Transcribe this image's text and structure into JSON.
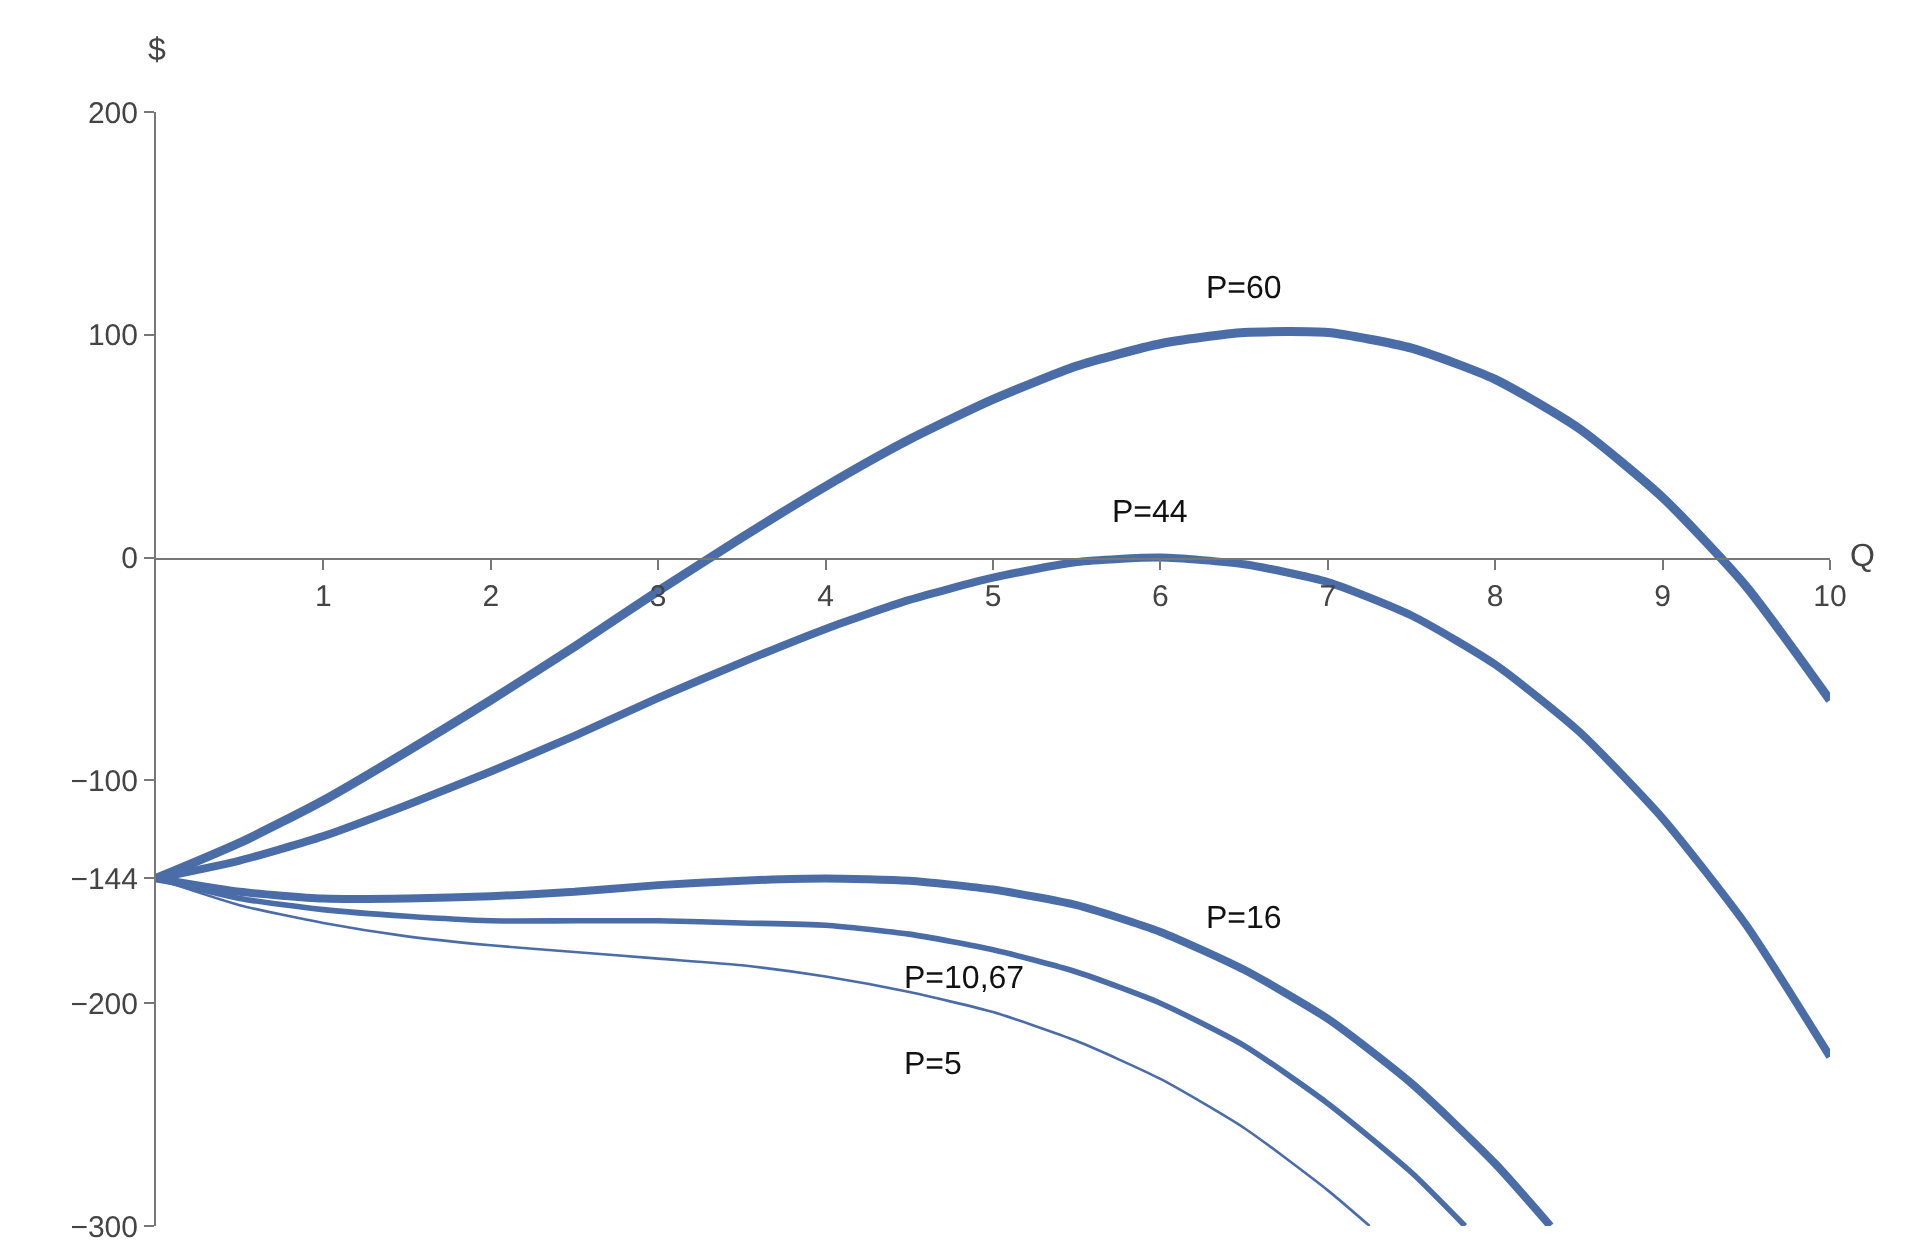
{
  "chart_data": {
    "type": "line",
    "xlabel": "Q",
    "ylabel": "$",
    "xlim": [
      0,
      10
    ],
    "ylim": [
      -300,
      200
    ],
    "xticks": [
      1,
      2,
      3,
      4,
      5,
      6,
      7,
      8,
      9,
      10
    ],
    "yticks": [
      200,
      100,
      0,
      {
        "value": -100,
        "label": "−100"
      },
      {
        "value": -144,
        "label": "−144"
      },
      {
        "value": -200,
        "label": "−200"
      },
      {
        "value": -300,
        "label": "−300"
      }
    ],
    "grid": false,
    "legend": false,
    "marker": "none",
    "line_style": "solid",
    "series": [
      {
        "name": "P=60",
        "color": "#4a6da7",
        "x": [
          0,
          0.5,
          1,
          1.5,
          2,
          2.5,
          3,
          3.5,
          4,
          4.5,
          5,
          5.5,
          6,
          6.5,
          7,
          7.5,
          8,
          8.5,
          9,
          9.5,
          10
        ],
        "values": [
          -144,
          -128,
          -109,
          -87,
          -64,
          -40,
          -15,
          9,
          32,
          53,
          71,
          86,
          96,
          101,
          101,
          94,
          80,
          58,
          27,
          -13,
          -64
        ]
      },
      {
        "name": "P=44",
        "color": "#4a6da7",
        "x": [
          0,
          0.5,
          1,
          1.5,
          2,
          2.5,
          3,
          3.5,
          4,
          4.5,
          5,
          5.5,
          6,
          6.5,
          7,
          7.5,
          8,
          8.5,
          9,
          9.5,
          10
        ],
        "values": [
          -144,
          -136,
          -125,
          -111,
          -96,
          -80,
          -63,
          -47,
          -32,
          -19,
          -9,
          -2,
          0,
          -3,
          -11,
          -26,
          -48,
          -78,
          -117,
          -165,
          -224
        ]
      },
      {
        "name": "P=16",
        "color": "#4a6da7",
        "x": [
          0,
          0.5,
          1,
          1.5,
          2,
          2.5,
          3,
          3.5,
          4,
          4.5,
          5,
          5.5,
          6,
          6.5,
          7,
          7.5,
          8,
          8.33
        ],
        "values": [
          -144,
          -150,
          -153,
          -153,
          -152,
          -150,
          -147,
          -145,
          -144,
          -145,
          -149,
          -156,
          -168,
          -185,
          -207,
          -236,
          -272,
          -300
        ]
      },
      {
        "name": "P=10,67",
        "color": "#4a6da7",
        "x": [
          0,
          0.5,
          1,
          1.5,
          2,
          2.5,
          3,
          3.5,
          4,
          4.5,
          5,
          5.5,
          6,
          6.5,
          7,
          7.5,
          7.82
        ],
        "values": [
          -144,
          -153,
          -158,
          -161,
          -163,
          -163,
          -163,
          -164,
          -165,
          -169,
          -176,
          -186,
          -200,
          -219,
          -245,
          -276,
          -300
        ]
      },
      {
        "name": "P=5",
        "color": "#4a6da7",
        "x": [
          0,
          0.5,
          1,
          1.5,
          2,
          2.5,
          3,
          3.5,
          4,
          4.5,
          5,
          5.5,
          6,
          6.5,
          7,
          7.25
        ],
        "values": [
          -144,
          -156,
          -164,
          -170,
          -174,
          -177,
          -180,
          -183,
          -188,
          -195,
          -204,
          -217,
          -234,
          -256,
          -284,
          -300
        ]
      }
    ]
  }
}
